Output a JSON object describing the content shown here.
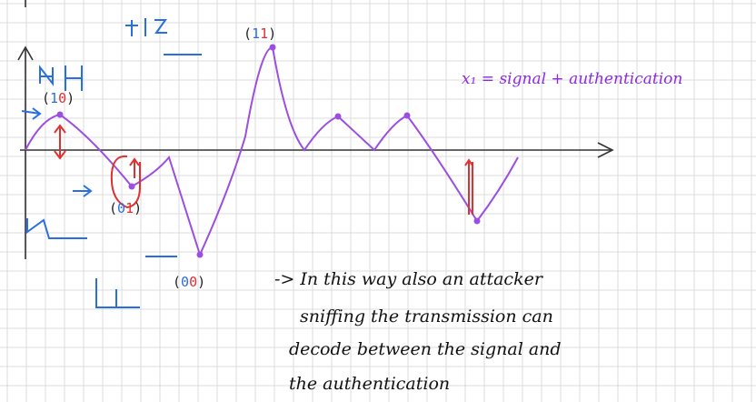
{
  "labels": {
    "top_code": {
      "open": "(",
      "d1": "1",
      "d2": "1",
      "close": ")"
    },
    "left_code": {
      "open": "(",
      "d1": "1",
      "d2": "0",
      "close": ")"
    },
    "mid_code": {
      "open": "(",
      "d1": "0",
      "d2": "1",
      "close": ")"
    },
    "bottom_code": {
      "open": "(",
      "d1": "0",
      "d2": "0",
      "close": ")"
    }
  },
  "formula": "x₁ = signal + authentication",
  "note_lines": [
    "-> In this way also an attacker",
    "sniffing the transmission can",
    "decode between the signal and",
    "the authentication"
  ],
  "colors": {
    "grid": "#dcdcdc",
    "axis": "#333333",
    "signal": "#9b4ee0",
    "blue": "#2a6fe0",
    "red": "#e03030"
  }
}
